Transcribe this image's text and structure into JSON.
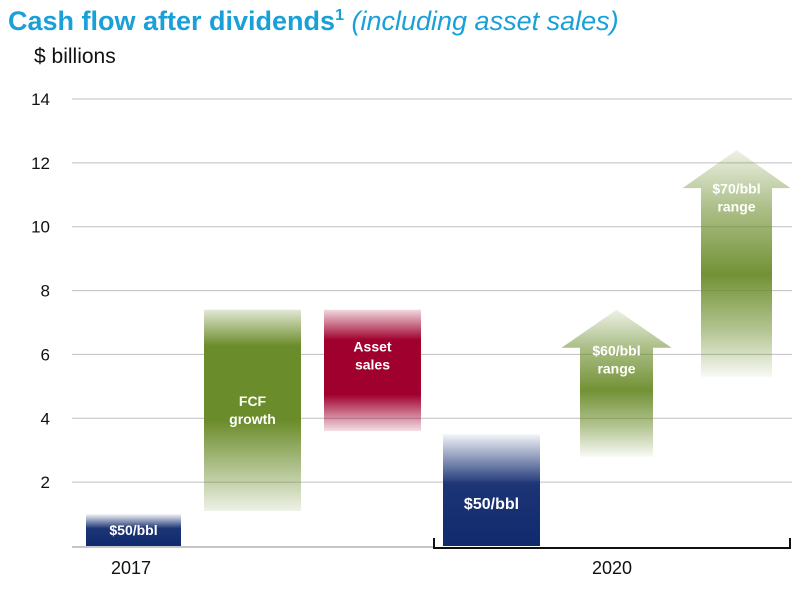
{
  "header": {
    "title": "Cash flow after dividends",
    "title_sup": "1",
    "title_sub": "(including asset sales)",
    "unit": "$ billions"
  },
  "colors": {
    "title": "#1aa0d8",
    "green": "#6b8c2a",
    "crimson": "#a0002e",
    "navy": "#102a6e",
    "grid": "#bfbfbf"
  },
  "chart_data": {
    "type": "bar",
    "ylim": [
      0,
      14
    ],
    "yticks": [
      2,
      4,
      6,
      8,
      10,
      12,
      14
    ],
    "grid": true,
    "xlabels": [
      {
        "label": "2017",
        "group": "2017"
      },
      {
        "label": "2020",
        "group": "2020"
      }
    ],
    "bars": [
      {
        "label": "$50/bbl",
        "group": "2017",
        "shape": "bar",
        "color": "navy",
        "bottom": 0,
        "top": 1.0
      },
      {
        "label": "FCF growth",
        "group": "2017",
        "shape": "bar",
        "color": "green",
        "bottom": 1.1,
        "top": 7.4
      },
      {
        "label": "Asset sales",
        "group": "2017",
        "shape": "bar",
        "color": "crimson",
        "bottom": 3.6,
        "top": 7.4
      },
      {
        "label": "$50/bbl",
        "group": "2020",
        "shape": "bar",
        "color": "navy",
        "bottom": 0,
        "top": 3.5
      },
      {
        "label": "$60/bbl range",
        "group": "2020",
        "shape": "arrow",
        "color": "green",
        "bottom": 2.8,
        "top": 7.4
      },
      {
        "label": "$70/bbl range",
        "group": "2020",
        "shape": "arrow",
        "color": "green",
        "bottom": 5.3,
        "top": 12.4
      }
    ]
  }
}
